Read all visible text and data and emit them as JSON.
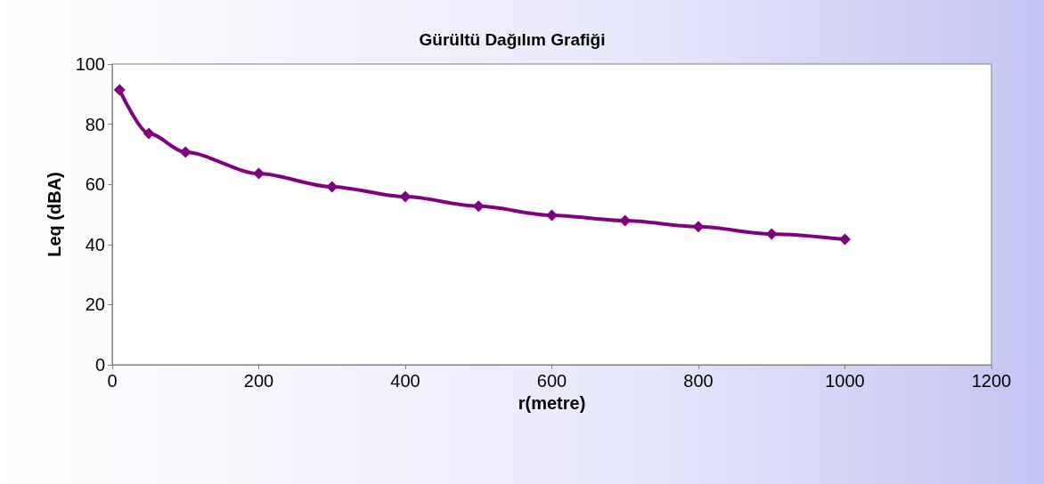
{
  "chart_data": {
    "type": "line",
    "title": "Gürültü Dağılım Grafiği",
    "xlabel": "r(metre)",
    "ylabel": "Leq (dBA)",
    "x": [
      10,
      50,
      100,
      200,
      300,
      400,
      500,
      600,
      700,
      800,
      900,
      1000
    ],
    "series": [
      {
        "color": "#800080",
        "values": [
          91.4,
          76.9,
          70.7,
          63.6,
          59.2,
          55.9,
          52.7,
          49.7,
          47.9,
          45.9,
          43.5,
          41.7
        ]
      }
    ],
    "xlim": [
      0,
      1200
    ],
    "xticks": [
      0,
      200,
      400,
      600,
      800,
      1000,
      1200
    ],
    "ylim": [
      0,
      100
    ],
    "yticks": [
      0,
      20,
      40,
      60,
      80,
      100
    ],
    "grid": false,
    "marker": "diamond",
    "line_style": "solid"
  }
}
